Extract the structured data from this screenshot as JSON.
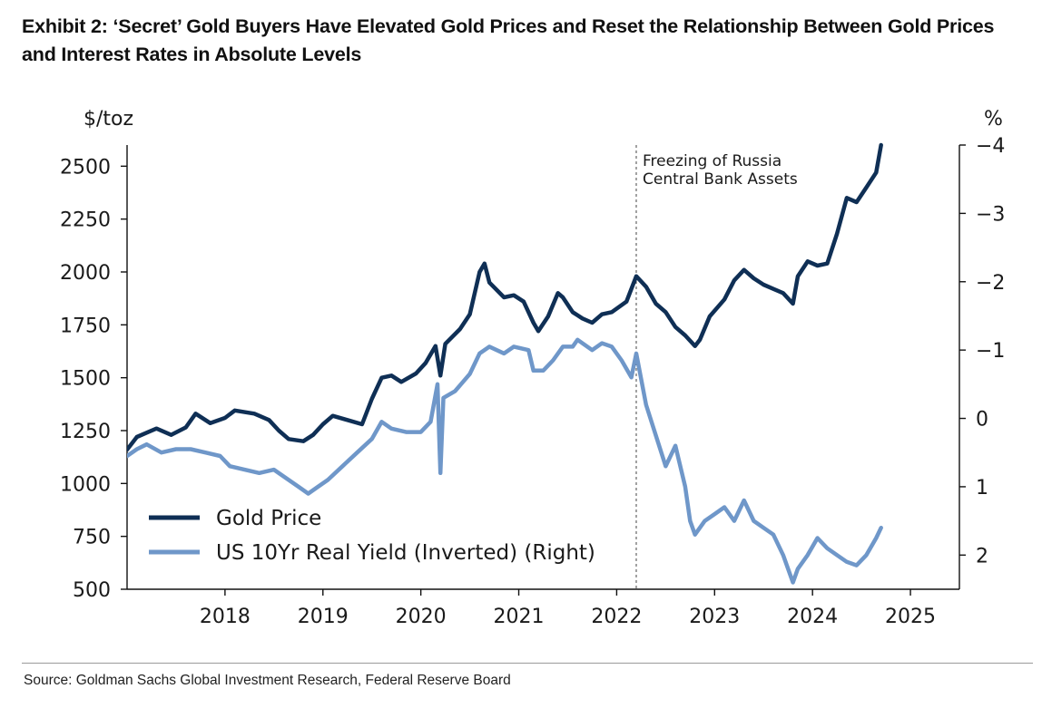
{
  "header": {
    "title": "Exhibit 2: ‘Secret’ Gold Buyers Have Elevated Gold Prices and Reset the Relationship Between Gold Prices and Interest Rates in Absolute Levels"
  },
  "footer": {
    "source": "Source: Goldman Sachs Global Investment Research, Federal Reserve Board"
  },
  "chart_data": {
    "type": "line",
    "left_axis": {
      "label": "$/toz",
      "range": [
        500,
        2600
      ],
      "ticks": [
        "500",
        "750",
        "1000",
        "1250",
        "1500",
        "1750",
        "2000",
        "2250",
        "2500"
      ]
    },
    "right_axis": {
      "label": "%",
      "range": [
        2.5,
        -4
      ],
      "inverted": true,
      "ticks": [
        "2",
        "1",
        "0",
        "−1",
        "−2",
        "−3",
        "−4"
      ]
    },
    "x_axis": {
      "range": [
        2017.0,
        2025.5
      ],
      "ticks": [
        "2018",
        "2019",
        "2020",
        "2021",
        "2022",
        "2023",
        "2024",
        "2025"
      ]
    },
    "annotation": {
      "lines": [
        "Freezing of Russia",
        "Central Bank Assets"
      ],
      "x": 2022.2
    },
    "legend": {
      "placement": "lower-left"
    },
    "grid": false,
    "series": [
      {
        "name": "Gold Price",
        "axis": "left",
        "color": "#0f2f55",
        "points": [
          [
            2017.0,
            1160
          ],
          [
            2017.1,
            1220
          ],
          [
            2017.2,
            1240
          ],
          [
            2017.3,
            1260
          ],
          [
            2017.45,
            1230
          ],
          [
            2017.6,
            1265
          ],
          [
            2017.7,
            1330
          ],
          [
            2017.85,
            1285
          ],
          [
            2018.0,
            1310
          ],
          [
            2018.1,
            1345
          ],
          [
            2018.3,
            1330
          ],
          [
            2018.45,
            1300
          ],
          [
            2018.55,
            1250
          ],
          [
            2018.65,
            1210
          ],
          [
            2018.8,
            1200
          ],
          [
            2018.9,
            1230
          ],
          [
            2019.0,
            1280
          ],
          [
            2019.1,
            1320
          ],
          [
            2019.25,
            1300
          ],
          [
            2019.4,
            1280
          ],
          [
            2019.5,
            1400
          ],
          [
            2019.6,
            1500
          ],
          [
            2019.7,
            1510
          ],
          [
            2019.8,
            1480
          ],
          [
            2019.95,
            1520
          ],
          [
            2020.05,
            1570
          ],
          [
            2020.15,
            1650
          ],
          [
            2020.2,
            1510
          ],
          [
            2020.25,
            1660
          ],
          [
            2020.4,
            1730
          ],
          [
            2020.5,
            1800
          ],
          [
            2020.6,
            2000
          ],
          [
            2020.65,
            2040
          ],
          [
            2020.7,
            1950
          ],
          [
            2020.85,
            1880
          ],
          [
            2020.95,
            1890
          ],
          [
            2021.05,
            1860
          ],
          [
            2021.15,
            1760
          ],
          [
            2021.2,
            1720
          ],
          [
            2021.3,
            1790
          ],
          [
            2021.4,
            1900
          ],
          [
            2021.45,
            1880
          ],
          [
            2021.55,
            1810
          ],
          [
            2021.65,
            1780
          ],
          [
            2021.75,
            1760
          ],
          [
            2021.85,
            1800
          ],
          [
            2021.95,
            1810
          ],
          [
            2022.1,
            1860
          ],
          [
            2022.2,
            1980
          ],
          [
            2022.3,
            1930
          ],
          [
            2022.4,
            1850
          ],
          [
            2022.5,
            1810
          ],
          [
            2022.6,
            1740
          ],
          [
            2022.7,
            1700
          ],
          [
            2022.8,
            1650
          ],
          [
            2022.85,
            1680
          ],
          [
            2022.95,
            1790
          ],
          [
            2023.1,
            1870
          ],
          [
            2023.2,
            1960
          ],
          [
            2023.3,
            2010
          ],
          [
            2023.4,
            1970
          ],
          [
            2023.5,
            1940
          ],
          [
            2023.6,
            1920
          ],
          [
            2023.7,
            1900
          ],
          [
            2023.8,
            1850
          ],
          [
            2023.85,
            1980
          ],
          [
            2023.95,
            2050
          ],
          [
            2024.05,
            2030
          ],
          [
            2024.15,
            2040
          ],
          [
            2024.25,
            2180
          ],
          [
            2024.35,
            2350
          ],
          [
            2024.45,
            2330
          ],
          [
            2024.55,
            2400
          ],
          [
            2024.65,
            2470
          ],
          [
            2024.7,
            2600
          ]
        ]
      },
      {
        "name": "US 10Yr Real Yield (Inverted) (Right)",
        "axis": "right",
        "color": "#6f97c9",
        "points": [
          [
            2017.0,
            0.55
          ],
          [
            2017.1,
            0.45
          ],
          [
            2017.2,
            0.38
          ],
          [
            2017.35,
            0.5
          ],
          [
            2017.5,
            0.45
          ],
          [
            2017.65,
            0.45
          ],
          [
            2017.8,
            0.5
          ],
          [
            2017.95,
            0.55
          ],
          [
            2018.05,
            0.7
          ],
          [
            2018.2,
            0.75
          ],
          [
            2018.35,
            0.8
          ],
          [
            2018.5,
            0.75
          ],
          [
            2018.65,
            0.9
          ],
          [
            2018.75,
            1.0
          ],
          [
            2018.85,
            1.1
          ],
          [
            2018.95,
            1.0
          ],
          [
            2019.05,
            0.9
          ],
          [
            2019.2,
            0.7
          ],
          [
            2019.35,
            0.5
          ],
          [
            2019.5,
            0.3
          ],
          [
            2019.6,
            0.05
          ],
          [
            2019.7,
            0.15
          ],
          [
            2019.85,
            0.2
          ],
          [
            2020.0,
            0.2
          ],
          [
            2020.1,
            0.05
          ],
          [
            2020.17,
            -0.5
          ],
          [
            2020.2,
            0.8
          ],
          [
            2020.23,
            -0.3
          ],
          [
            2020.35,
            -0.4
          ],
          [
            2020.5,
            -0.65
          ],
          [
            2020.6,
            -0.95
          ],
          [
            2020.7,
            -1.05
          ],
          [
            2020.85,
            -0.95
          ],
          [
            2020.95,
            -1.05
          ],
          [
            2021.1,
            -1.0
          ],
          [
            2021.15,
            -0.7
          ],
          [
            2021.25,
            -0.7
          ],
          [
            2021.35,
            -0.85
          ],
          [
            2021.45,
            -1.05
          ],
          [
            2021.55,
            -1.05
          ],
          [
            2021.6,
            -1.15
          ],
          [
            2021.75,
            -1.0
          ],
          [
            2021.85,
            -1.1
          ],
          [
            2021.95,
            -1.05
          ],
          [
            2022.05,
            -0.85
          ],
          [
            2022.15,
            -0.6
          ],
          [
            2022.2,
            -0.95
          ],
          [
            2022.3,
            -0.2
          ],
          [
            2022.4,
            0.25
          ],
          [
            2022.5,
            0.7
          ],
          [
            2022.6,
            0.4
          ],
          [
            2022.7,
            1.0
          ],
          [
            2022.75,
            1.5
          ],
          [
            2022.8,
            1.7
          ],
          [
            2022.9,
            1.5
          ],
          [
            2023.0,
            1.4
          ],
          [
            2023.1,
            1.3
          ],
          [
            2023.2,
            1.5
          ],
          [
            2023.3,
            1.2
          ],
          [
            2023.4,
            1.5
          ],
          [
            2023.5,
            1.6
          ],
          [
            2023.6,
            1.7
          ],
          [
            2023.7,
            2.0
          ],
          [
            2023.8,
            2.4
          ],
          [
            2023.85,
            2.2
          ],
          [
            2023.95,
            2.0
          ],
          [
            2024.05,
            1.75
          ],
          [
            2024.15,
            1.9
          ],
          [
            2024.25,
            2.0
          ],
          [
            2024.35,
            2.1
          ],
          [
            2024.45,
            2.15
          ],
          [
            2024.55,
            2.0
          ],
          [
            2024.65,
            1.75
          ],
          [
            2024.7,
            1.6
          ]
        ]
      }
    ]
  }
}
